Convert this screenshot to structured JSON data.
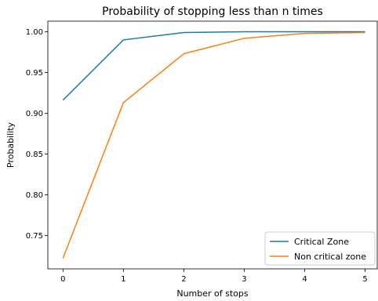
{
  "chart_data": {
    "type": "line",
    "title": "Probability of stopping less than n times",
    "xlabel": "Number of stops",
    "ylabel": "Probability",
    "x": [
      0,
      1,
      2,
      3,
      4,
      5
    ],
    "xlim": [
      -0.25,
      5.2
    ],
    "ylim": [
      0.709,
      1.013
    ],
    "xticks": [
      "0",
      "1",
      "2",
      "3",
      "4",
      "5"
    ],
    "yticks": [
      "0.75",
      "0.80",
      "0.85",
      "0.90",
      "0.95",
      "1.00"
    ],
    "grid": false,
    "legend_position": "bottom-right",
    "series": [
      {
        "name": "Critical Zone",
        "color": "#1f77b4",
        "values": [
          0.916,
          0.99,
          0.999,
          1.0,
          1.0,
          1.0
        ]
      },
      {
        "name": "Non critical zone",
        "color": "#ff7f0e",
        "values": [
          0.722,
          0.913,
          0.973,
          0.992,
          0.998,
          0.999
        ]
      }
    ]
  }
}
